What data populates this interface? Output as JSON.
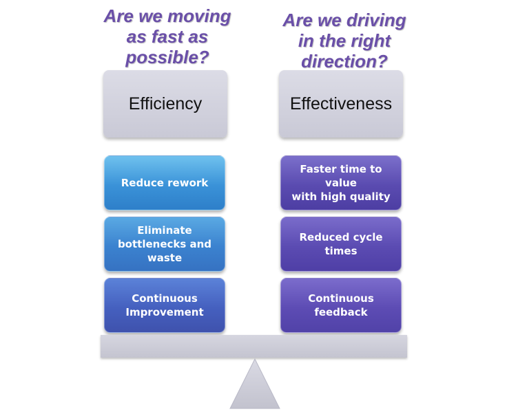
{
  "left": {
    "question": "Are we moving\nas fast as\npossible?",
    "category": "Efficiency",
    "items": [
      {
        "label": "Reduce rework"
      },
      {
        "label": "Eliminate\nbottlenecks and\nwaste"
      },
      {
        "label": "Continuous\nImprovement"
      }
    ]
  },
  "right": {
    "question": "Are we driving\nin the right\ndirection?",
    "category": "Effectiveness",
    "items": [
      {
        "label": "Faster time to value\nwith high quality"
      },
      {
        "label": "Reduced cycle times"
      },
      {
        "label": "Continuous\nfeedback"
      }
    ]
  },
  "colors": {
    "question_text": "#6a4fa8",
    "category_box": "#cfcfdc",
    "left_items": "#3a92d8",
    "right_items": "#5a4bb0",
    "beam": "#cdcdd8",
    "fulcrum": "#cdcdd8"
  }
}
